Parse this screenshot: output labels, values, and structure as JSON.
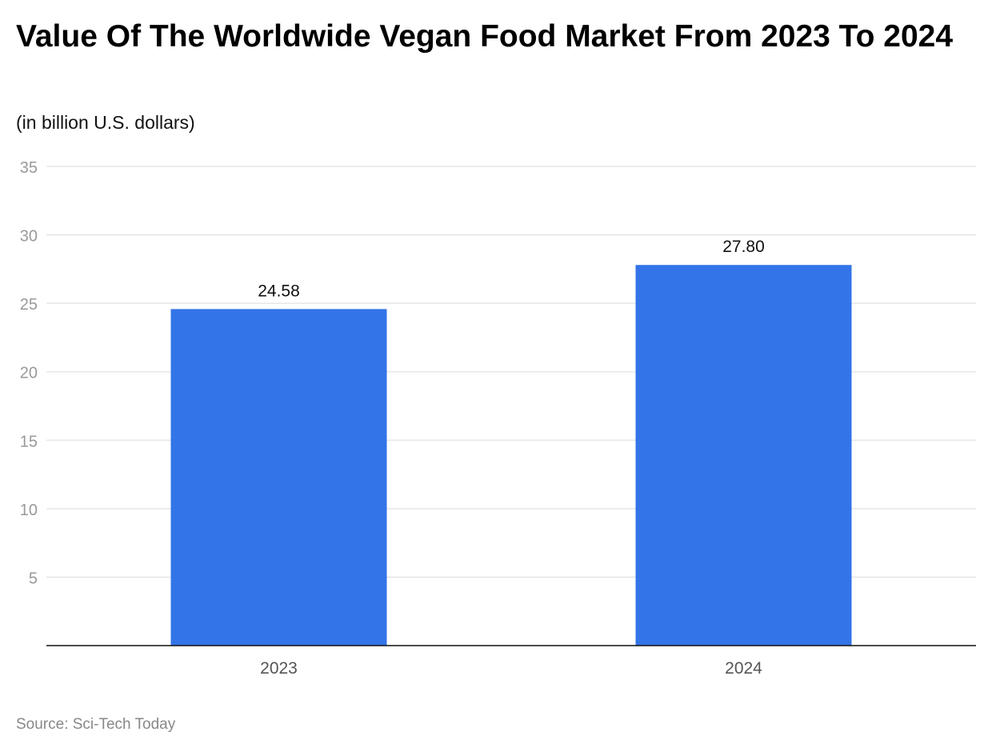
{
  "chart_data": {
    "type": "bar",
    "title": "Value Of The Worldwide Vegan Food Market From 2023 To 2024",
    "subtitle": "(in billion U.S. dollars)",
    "categories": [
      "2023",
      "2024"
    ],
    "values": [
      24.58,
      27.8
    ],
    "data_labels": [
      "24.58",
      "27.80"
    ],
    "xlabel": "",
    "ylabel": "",
    "ylim": [
      0,
      35
    ],
    "yticks": [
      5,
      10,
      15,
      20,
      25,
      30,
      35
    ],
    "grid": true,
    "bar_color": "#3374E8",
    "source": "Source: Sci-Tech Today"
  }
}
